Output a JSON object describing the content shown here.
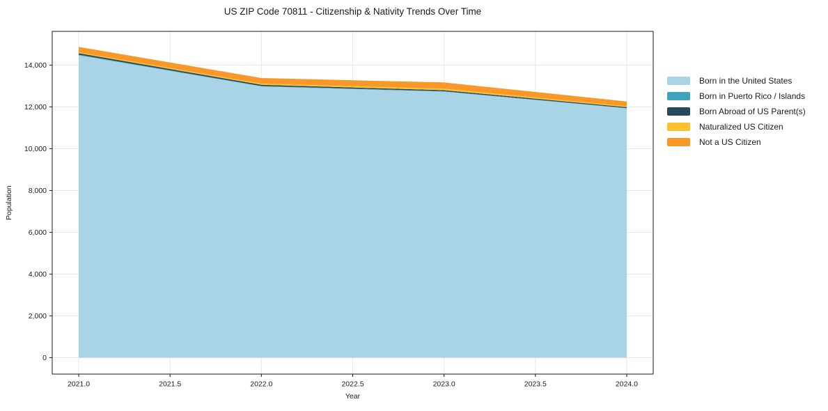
{
  "title": "US ZIP Code 70811 - Citizenship & Nativity Trends Over Time",
  "chart_data": {
    "type": "area",
    "stacked": true,
    "title": "US ZIP Code 70811 - Citizenship & Nativity Trends Over Time",
    "xlabel": "Year",
    "ylabel": "Population",
    "x": [
      2021,
      2022,
      2023,
      2024
    ],
    "xtick_labels": [
      "2021.0",
      "2021.5",
      "2022.0",
      "2022.5",
      "2023.0",
      "2023.5",
      "2024.0"
    ],
    "ytick_labels": [
      "0",
      "2,000",
      "4,000",
      "6,000",
      "8,000",
      "10,000",
      "12,000",
      "14,000"
    ],
    "xlim": [
      2020.855,
      2024.145
    ],
    "ylim": [
      -785,
      15615
    ],
    "grid": true,
    "grid_color": "#e8e8e8",
    "axis_color": "#1a1a1a",
    "legend_position": "right-outside",
    "series": [
      {
        "name": "Born in the United States",
        "color": "#a9d4e6",
        "values": [
          14470,
          12980,
          12730,
          11930
        ]
      },
      {
        "name": "Born in Puerto Rico / Islands",
        "color": "#3fa3bc",
        "values": [
          30,
          20,
          20,
          15
        ]
      },
      {
        "name": "Born Abroad of US Parent(s)",
        "color": "#27495e",
        "values": [
          70,
          60,
          50,
          45
        ]
      },
      {
        "name": "Naturalized US Citizen",
        "color": "#fcc22d",
        "values": [
          40,
          50,
          70,
          40
        ]
      },
      {
        "name": "Not a US Citizen",
        "color": "#f89828",
        "values": [
          260,
          270,
          300,
          230
        ]
      }
    ],
    "totals": [
      14870,
      13380,
      13170,
      12260
    ]
  }
}
